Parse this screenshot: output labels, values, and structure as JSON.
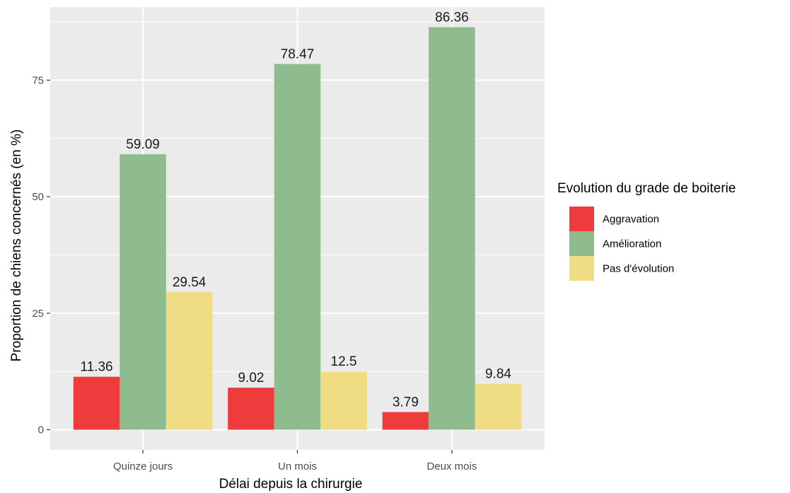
{
  "chart_data": {
    "type": "bar",
    "categories": [
      "Quinze jours",
      "Un mois",
      "Deux mois"
    ],
    "series": [
      {
        "name": "Aggravation",
        "values": [
          11.36,
          9.02,
          3.79
        ],
        "color": "#ef3b3b"
      },
      {
        "name": "Amélioration",
        "values": [
          59.09,
          78.47,
          86.36
        ],
        "color": "#8fbc8f"
      },
      {
        "name": "Pas d'évolution",
        "values": [
          29.54,
          12.5,
          9.84
        ],
        "color": "#f0dc82"
      }
    ],
    "xlabel": "Délai depuis la chirurgie",
    "ylabel": "Proportion de chiens concernés (en %)",
    "ylim": [
      -4.32,
      90.68
    ],
    "yticks": [
      0,
      25,
      50,
      75
    ],
    "grid": true,
    "panel_background": "#ebebeb",
    "grid_color": "#ffffff",
    "legend": {
      "title": "Evolution du grade de boiterie",
      "position": "right"
    }
  }
}
